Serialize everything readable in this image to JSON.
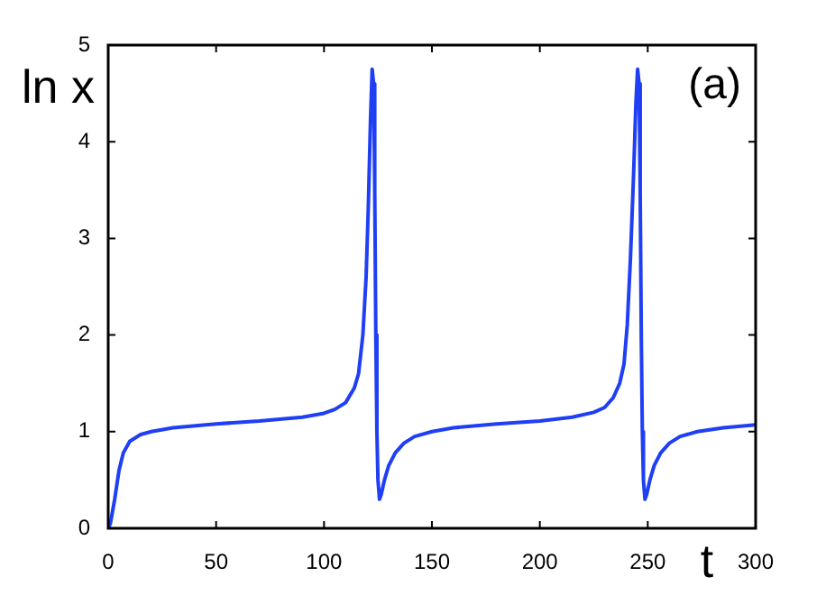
{
  "chart_data": {
    "type": "line",
    "xlabel": "t",
    "ylabel": "ln x",
    "annotations": [
      "(a)"
    ],
    "xlim": [
      0,
      300
    ],
    "ylim": [
      0,
      5
    ],
    "xticks": [
      0,
      50,
      100,
      150,
      200,
      250,
      300
    ],
    "yticks": [
      0,
      1,
      2,
      3,
      4,
      5
    ],
    "grid": false,
    "legend": false,
    "marker": "none",
    "line_style": "solid",
    "series": [
      {
        "color": "#1f3ff5",
        "x": [
          0,
          1,
          3,
          5,
          7,
          10,
          15,
          20,
          30,
          50,
          70,
          90,
          100,
          105,
          110,
          114,
          116,
          118,
          119.5,
          120.5,
          121.5,
          122.3,
          123,
          123.5,
          124,
          124.5,
          125,
          125.7,
          126.5,
          128,
          130,
          133,
          137,
          142,
          150,
          160,
          180,
          200,
          215,
          225,
          230,
          234,
          237,
          239,
          240.5,
          242,
          243.5,
          244.5,
          245.3,
          246,
          246.5,
          247,
          247.5,
          248,
          248.7,
          249.5,
          251,
          253,
          256,
          260,
          265,
          273,
          285,
          300
        ],
        "values": [
          0,
          0.05,
          0.3,
          0.6,
          0.78,
          0.9,
          0.97,
          1.0,
          1.04,
          1.08,
          1.11,
          1.15,
          1.19,
          1.23,
          1.3,
          1.45,
          1.6,
          2.0,
          2.6,
          3.3,
          4.2,
          4.75,
          4.6,
          3.5,
          2.0,
          1.0,
          0.5,
          0.3,
          0.35,
          0.5,
          0.65,
          0.78,
          0.88,
          0.95,
          1.0,
          1.04,
          1.08,
          1.11,
          1.15,
          1.2,
          1.25,
          1.35,
          1.5,
          1.7,
          2.1,
          2.8,
          3.7,
          4.4,
          4.75,
          4.6,
          3.5,
          2.0,
          1.0,
          0.5,
          0.3,
          0.35,
          0.5,
          0.65,
          0.78,
          0.88,
          0.95,
          1.0,
          1.04,
          1.07
        ]
      }
    ]
  }
}
